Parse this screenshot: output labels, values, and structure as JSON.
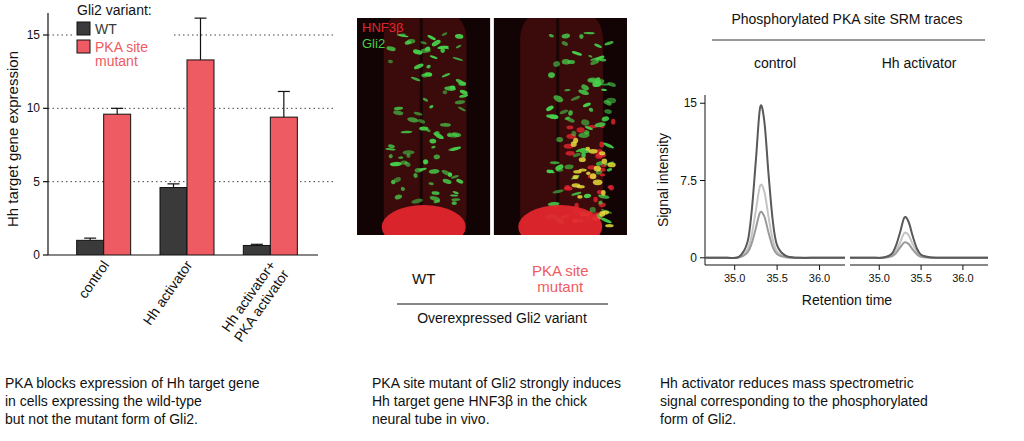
{
  "chart_data": [
    {
      "type": "bar",
      "ylabel": "Hh target gene expression",
      "legend_title": "Gli2 variant:",
      "legend": "upper left",
      "categories": [
        "control",
        "Hh activator",
        "Hh activator+ PKA activator"
      ],
      "series": [
        {
          "name": "WT",
          "color": "#3a3a3a",
          "values": [
            1.0,
            4.6,
            0.65
          ],
          "errors": [
            0.15,
            0.25,
            0.08
          ]
        },
        {
          "name": "PKA site mutant",
          "color": "#ef5b63",
          "values": [
            9.6,
            13.3,
            9.4
          ],
          "errors": [
            0.4,
            2.85,
            1.75
          ]
        }
      ],
      "ylim": [
        0,
        16.5
      ],
      "yticks": [
        0,
        5,
        10,
        15
      ],
      "grid": true,
      "caption": [
        "PKA blocks expression of Hh target gene",
        "in cells expressing the wild-type",
        "but not the mutant form of Gli2."
      ]
    },
    {
      "type": "image",
      "channels": [
        {
          "name": "HNF3β",
          "color": "#e3262e"
        },
        {
          "name": "Gli2",
          "color": "#46d04a"
        }
      ],
      "panels": [
        "WT",
        "PKA site mutant"
      ],
      "xlabel": "Overexpressed Gli2 variant",
      "caption": [
        "PKA site mutant of Gli2 strongly induces",
        "Hh target gene HNF3β in the chick",
        "neural tube in vivo."
      ]
    },
    {
      "type": "line",
      "title": "Phosphorylated PKA site SRM traces",
      "ylabel": "Signal intensity",
      "xlabel": "Retention time",
      "ylim": [
        -0.7,
        15.8
      ],
      "yticks": [
        0,
        7.5,
        15
      ],
      "xlim": [
        34.65,
        36.3
      ],
      "xticks": [
        {
          "value": 35,
          "label": "35.0"
        },
        35.5,
        {
          "value": 36,
          "label": "36.0"
        }
      ],
      "x": [
        34.65,
        34.9,
        35.05,
        35.15,
        35.2,
        35.25,
        35.3,
        35.35,
        35.4,
        35.45,
        35.5,
        35.6,
        35.75,
        36.0,
        36.3
      ],
      "panels": [
        {
          "title": "control",
          "series": [
            {
              "color": "#c4c4c4",
              "values": [
                0,
                0,
                0.05,
                0.8,
                2.2,
                4.6,
                7.0,
                6.4,
                3.9,
                1.7,
                0.6,
                0.1,
                0,
                0,
                0
              ]
            },
            {
              "color": "#9a9a9a",
              "values": [
                0,
                0,
                0.03,
                0.5,
                1.4,
                2.9,
                4.4,
                4.0,
                2.4,
                1.0,
                0.35,
                0.05,
                0,
                0,
                0
              ]
            },
            {
              "color": "#595959",
              "values": [
                0,
                0,
                0.1,
                1.5,
                4.5,
                9.5,
                14.6,
                13.2,
                8.0,
                3.5,
                1.2,
                0.2,
                0,
                0,
                0
              ]
            }
          ]
        },
        {
          "title": "Hh activator",
          "series": [
            {
              "color": "#c4c4c4",
              "values": [
                0,
                0,
                0.01,
                0.25,
                0.7,
                1.5,
                2.4,
                2.2,
                1.3,
                0.6,
                0.2,
                0.03,
                0,
                0,
                0
              ]
            },
            {
              "color": "#9a9a9a",
              "values": [
                0,
                0,
                0.01,
                0.15,
                0.45,
                1.0,
                1.5,
                1.35,
                0.8,
                0.35,
                0.1,
                0.02,
                0,
                0,
                0
              ]
            },
            {
              "color": "#595959",
              "values": [
                0,
                0,
                0.02,
                0.4,
                1.2,
                2.5,
                3.9,
                3.5,
                2.1,
                0.9,
                0.3,
                0.05,
                0,
                0,
                0
              ]
            }
          ]
        }
      ],
      "caption": [
        "Hh activator reduces mass spectrometric",
        "signal corresponding to the phosphorylated",
        "form of Gli2."
      ]
    }
  ]
}
